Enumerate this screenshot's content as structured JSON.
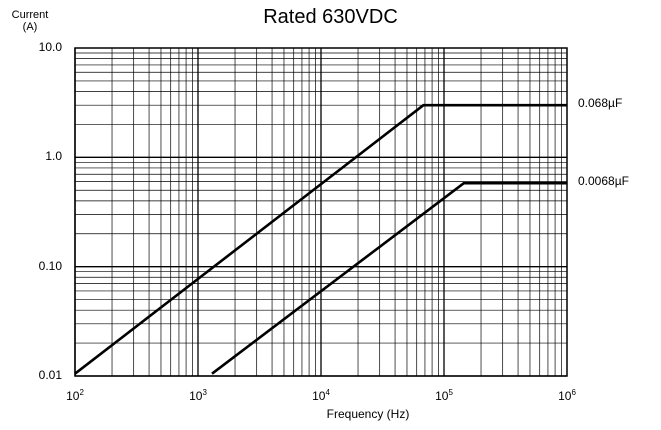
{
  "chart_data": {
    "type": "line",
    "title": "Rated  630VDC",
    "xlabel": "Frequency (Hz)",
    "ylabel_lines": [
      "Current",
      "(A)"
    ],
    "x_scale": "log",
    "y_scale": "log",
    "xlim": [
      100,
      1000000
    ],
    "ylim": [
      0.01,
      10
    ],
    "x_tick_labels": [
      {
        "base": "10",
        "exp": "2",
        "value": 100
      },
      {
        "base": "10",
        "exp": "3",
        "value": 1000
      },
      {
        "base": "10",
        "exp": "4",
        "value": 10000
      },
      {
        "base": "10",
        "exp": "5",
        "value": 100000
      },
      {
        "base": "10",
        "exp": "6",
        "value": 1000000
      }
    ],
    "y_tick_labels": [
      {
        "label": "10.0",
        "value": 10
      },
      {
        "label": "1.0",
        "value": 1
      },
      {
        "label": "0.10",
        "value": 0.1
      },
      {
        "label": "0.01",
        "value": 0.01
      }
    ],
    "grid": true,
    "series": [
      {
        "name": "0.068µF",
        "points": [
          [
            100,
            0.0105
          ],
          [
            68000,
            3.0
          ],
          [
            1000000,
            3.0
          ]
        ]
      },
      {
        "name": "0.0068µF",
        "points": [
          [
            1300,
            0.0105
          ],
          [
            145000,
            0.58
          ],
          [
            1000000,
            0.58
          ]
        ]
      }
    ]
  }
}
